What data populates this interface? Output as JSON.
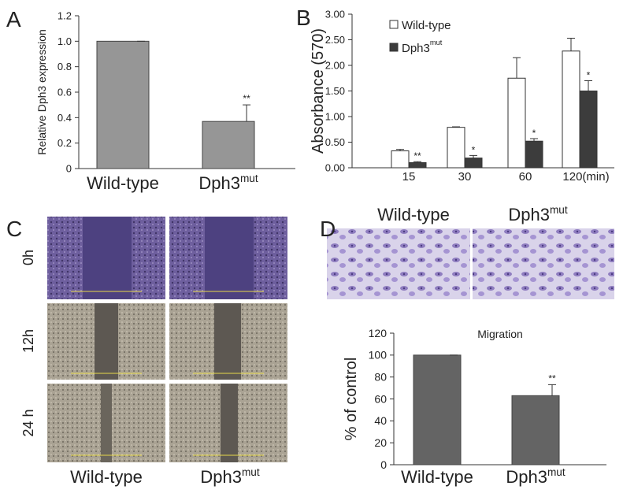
{
  "chart_data": [
    {
      "type": "bar",
      "panel": "A",
      "y_label": "Relative Dph3 expression",
      "categories": [
        "Wild-type",
        "Dph3"
      ],
      "category_superscripts": [
        null,
        "mut"
      ],
      "values": [
        1.0,
        0.37
      ],
      "errors": [
        0,
        0.13
      ],
      "annotations": [
        null,
        "**"
      ],
      "color": "#969696",
      "ylim": [
        0,
        1.2
      ],
      "yticks": [
        0,
        0.2,
        0.4,
        0.6,
        0.8,
        {
          "value": 1,
          "label": "1.0"
        },
        1.2
      ]
    },
    {
      "type": "grouped_bar",
      "panel": "B",
      "y_label": "Absorbance (570)",
      "categories": [
        "15",
        "30",
        "60",
        "120(min)"
      ],
      "series": [
        {
          "name": "Wild-type",
          "color": "#ffffff",
          "values": [
            0.33,
            0.79,
            1.75,
            2.28
          ],
          "errors": [
            0.03,
            0.01,
            0.4,
            0.25
          ]
        },
        {
          "name": "Dph3",
          "name_superscript": "mut",
          "color": "#3c3c3c",
          "values": [
            0.1,
            0.19,
            0.52,
            1.5
          ],
          "errors": [
            0.02,
            0.05,
            0.05,
            0.2
          ],
          "annotations": [
            "**",
            "*",
            "*",
            "*"
          ]
        }
      ],
      "ylim": [
        0,
        3
      ],
      "yticks": [
        {
          "value": 0,
          "label": "0.00"
        },
        {
          "value": 0.5,
          "label": "0.50"
        },
        {
          "value": 1,
          "label": "1.00"
        },
        {
          "value": 1.5,
          "label": "1.50"
        },
        {
          "value": 2,
          "label": "2.00"
        },
        {
          "value": 2.5,
          "label": "2.50"
        },
        {
          "value": 3,
          "label": "3.00"
        }
      ]
    },
    {
      "type": "bar",
      "title": "Migration",
      "y_label": "% of control",
      "categories": [
        "Wild-type",
        "Dph3"
      ],
      "category_superscripts": [
        null,
        "mut"
      ],
      "values": [
        100,
        63
      ],
      "errors": [
        0,
        10
      ],
      "annotations": [
        null,
        "**"
      ],
      "color": "#646464",
      "ylim": [
        0,
        120
      ],
      "yticks": [
        0,
        20,
        40,
        60,
        80,
        100,
        120
      ]
    }
  ],
  "panel_c": {
    "letter": "C",
    "row_labels": [
      "0h",
      "12h",
      "24 h"
    ],
    "column_labels": [
      "Wild-type",
      "Dph3"
    ],
    "column_superscripts": [
      null,
      "mut"
    ]
  },
  "panel_d": {
    "letter": "D",
    "column_labels": [
      "Wild-type",
      "Dph3"
    ],
    "column_superscripts": [
      null,
      "mut"
    ]
  }
}
